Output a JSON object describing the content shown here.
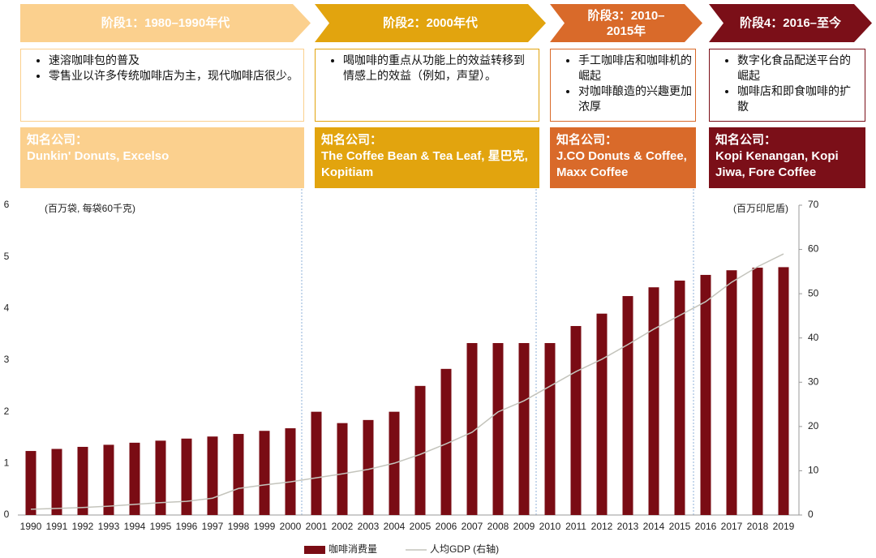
{
  "stages": [
    {
      "title": "阶段1：1980–1990年代",
      "bullets": [
        "速溶咖啡包的普及",
        "零售业以许多传统咖啡店为主，现代咖啡店很少。"
      ],
      "companies_label": "知名公司：",
      "companies": "Dunkin' Donuts, Excelso"
    },
    {
      "title": "阶段2：2000年代",
      "bullets": [
        "喝咖啡的重点从功能上的效益转移到情感上的效益（例如，声望）。"
      ],
      "companies_label": "知名公司：",
      "companies": "The Coffee Bean & Tea Leaf, 星巴克, Kopitiam"
    },
    {
      "title": "阶段3：2010–2015年",
      "bullets": [
        "手工咖啡店和咖啡机的崛起",
        "对咖啡酿造的兴趣更加浓厚"
      ],
      "companies_label": "知名公司：",
      "companies": "J.CO Donuts & Coffee, Maxx Coffee"
    },
    {
      "title": "阶段4：2016–至今",
      "bullets": [
        "数字化食品配送平台的崛起",
        "咖啡店和即食咖啡的扩散"
      ],
      "companies_label": "知名公司：",
      "companies": "Kopi Kenangan, Kopi Jiwa, Fore Coffee"
    }
  ],
  "chart_data": {
    "type": "bar",
    "y_label": "(百万袋, 每袋60千克)",
    "y2_label": "(百万印尼盾)",
    "categories": [
      "1990",
      "1991",
      "1992",
      "1993",
      "1994",
      "1995",
      "1996",
      "1997",
      "1998",
      "1999",
      "2000",
      "2001",
      "2002",
      "2003",
      "2004",
      "2005",
      "2006",
      "2007",
      "2008",
      "2009",
      "2010",
      "2011",
      "2012",
      "2013",
      "2014",
      "2015",
      "2016",
      "2017",
      "2018",
      "2019"
    ],
    "series": [
      {
        "name": "咖啡消费量",
        "type": "bar",
        "color": "#7a0c14",
        "values": [
          1.24,
          1.28,
          1.32,
          1.36,
          1.4,
          1.44,
          1.48,
          1.52,
          1.57,
          1.63,
          1.68,
          2.0,
          1.78,
          1.84,
          2.0,
          2.5,
          2.83,
          3.33,
          3.33,
          3.33,
          3.33,
          3.66,
          3.9,
          4.24,
          4.41,
          4.54,
          4.65,
          4.74,
          4.79,
          4.8
        ]
      },
      {
        "name": "人均GDP (右轴)",
        "type": "line",
        "axis": "y2",
        "color": "#c4c4bc",
        "values": [
          1.3,
          1.5,
          1.7,
          2.0,
          2.4,
          2.8,
          3.1,
          3.8,
          6.0,
          6.8,
          7.5,
          8.4,
          9.3,
          10.3,
          11.7,
          13.7,
          16.1,
          18.7,
          23.3,
          25.8,
          29.1,
          32.4,
          35.2,
          38.5,
          42.0,
          45.1,
          48.2,
          52.6,
          56.1,
          59.0
        ]
      }
    ],
    "ylim": [
      0,
      6
    ],
    "yticks": [
      0,
      1,
      2,
      3,
      4,
      5,
      6
    ],
    "y2lim": [
      0,
      70
    ],
    "y2ticks": [
      0,
      10,
      20,
      30,
      40,
      50,
      60,
      70
    ]
  }
}
